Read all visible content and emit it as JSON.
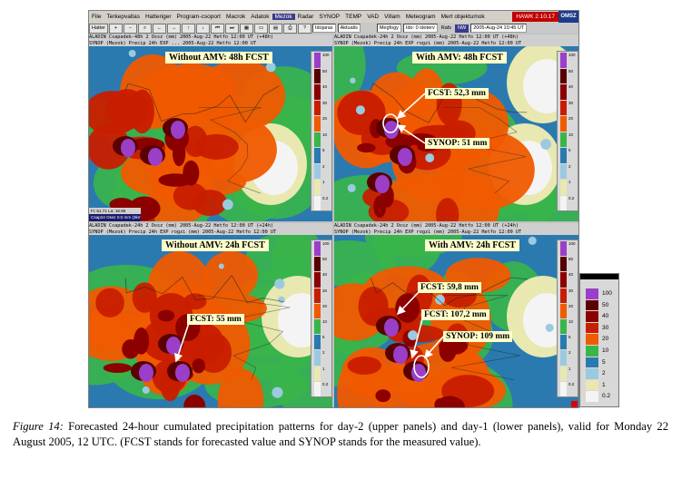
{
  "menu": {
    "items": [
      "File",
      "Terkepvaltas",
      "Hatteriger",
      "Program-csoport",
      "Macrok",
      "Adatok",
      "Mezok",
      "Radar",
      "SYNOP",
      "TEMP",
      "VAD",
      "Villam",
      "Meteogram",
      "Mert objektumok"
    ],
    "highlighted_index": 6,
    "brand": "HAWK 2.10.17",
    "logo": "OMSZ"
  },
  "toolbar": {
    "first_button": "Hatter",
    "fields": [
      "Idojaras",
      "Aktualis"
    ],
    "field_right_1": "Megfogy",
    "field_right_2": "Ido: 0 idoterv",
    "mode_label": "Rafs",
    "selected_value": "NW",
    "datetime": "2005-Aug-24 10:45 UT"
  },
  "panels": [
    {
      "header_line1": "ALADIN Csapadek-48h 2 Ossz (mm)  2005-Aug-22 Hetfo 12:00 UT (+48h)",
      "header_line2": "SYNOP (Mezok) Precip 24h  EXP ... 2005-Aug-22 Hetfo 12:00 UT",
      "title": "Without AMV: 48h FCST",
      "annotations": [],
      "status_line1": "Csap24 Ossz 0.0 mm (3km)",
      "status_line2": "Fi: 51.71  La: 16.86"
    },
    {
      "header_line1": "ALADIN Csapadek-24h 2 Ossz (mm)  2005-Aug-22 Hetfo 12:00 UT (+48h)",
      "header_line2": "SYNOP (Mezok) Precip 24h  EXP rogzi (mm)  2005-Aug-22 Hetfo 12:00 UT",
      "title": "With AMV: 48h FCST",
      "annotations": [
        "FCST: 52,3 mm",
        "SYNOP: 51 mm"
      ]
    },
    {
      "header_line1": "ALADIN Csapadek-24h 2 Ossz (mm)  2005-Aug-22 Hetfo 12:00 UT (+24h)",
      "header_line2": "SYNOP (Mezok) Precip 24h  EXP rogzi (mm)  2005-Aug-22 Hetfo 12:00 UT",
      "title": "Without AMV: 24h FCST",
      "annotations": [
        "FCST: 55 mm"
      ]
    },
    {
      "header_line1": "ALADIN Csapadek-24h 2 Ossz (mm)  2005-Aug-22 Hetfo 12:00 UT (+24h)",
      "header_line2": "SYNOP (Mezok) Precip 24h  EXP rogzi (mm)  2005-Aug-22 Hetfo 12:00 UT",
      "title": "With AMV: 24h FCST",
      "annotations": [
        "FCST: 59,8 mm",
        "FCST: 107,2 mm",
        "SYNOP: 109 mm"
      ]
    }
  ],
  "legend": {
    "levels": [
      "100",
      "50",
      "40",
      "30",
      "20",
      "10",
      "5",
      "2",
      "1",
      "0.2"
    ],
    "colors": [
      "#9b3fc8",
      "#5a0000",
      "#8c0000",
      "#c81e00",
      "#f05a00",
      "#39b54a",
      "#2a7ab0",
      "#9bc9e0",
      "#e8e8b0",
      "#f4f4f4"
    ]
  },
  "caption": {
    "figure_label": "Figure 14:",
    "text": " Forecasted 24-hour cumulated precipitation patterns for day-2 (upper panels) and day-1 (lower panels), valid for Monday 22 August 2005, 12 UTC. (FCST stands for forecasted value and SYNOP stands for the measured value)."
  }
}
